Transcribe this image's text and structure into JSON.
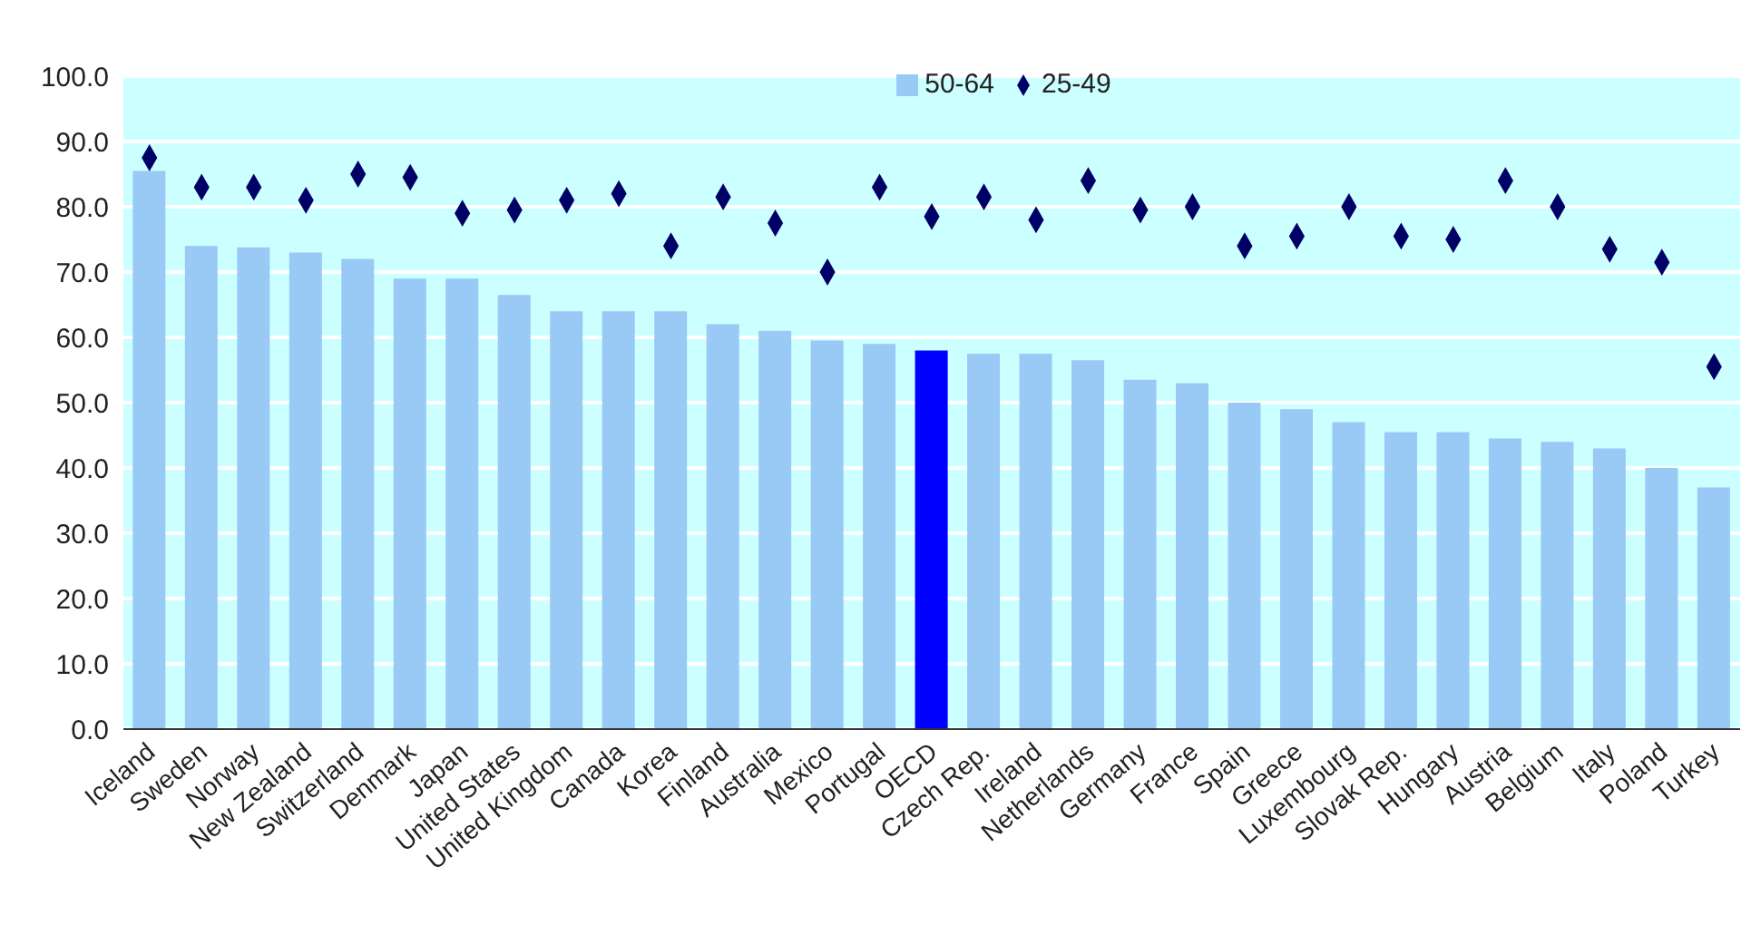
{
  "chart_data": {
    "type": "bar",
    "categories": [
      "Iceland",
      "Sweden",
      "Norway",
      "New Zealand",
      "Switzerland",
      "Denmark",
      "Japan",
      "United States",
      "United Kingdom",
      "Canada",
      "Korea",
      "Finland",
      "Australia",
      "Mexico",
      "Portugal",
      "OECD",
      "Czech Rep.",
      "Ireland",
      "Netherlands",
      "Germany",
      "France",
      "Spain",
      "Greece",
      "Luxembourg",
      "Slovak Rep.",
      "Hungary",
      "Austria",
      "Belgium",
      "Italy",
      "Poland",
      "Turkey"
    ],
    "series": [
      {
        "name": "50-64",
        "color": "#99c9f5",
        "colors": [
          "#99c9f5",
          "#99c9f5",
          "#99c9f5",
          "#99c9f5",
          "#99c9f5",
          "#99c9f5",
          "#99c9f5",
          "#99c9f5",
          "#99c9f5",
          "#99c9f5",
          "#99c9f5",
          "#99c9f5",
          "#99c9f5",
          "#99c9f5",
          "#99c9f5",
          "#0000ff",
          "#99c9f5",
          "#99c9f5",
          "#99c9f5",
          "#99c9f5",
          "#99c9f5",
          "#99c9f5",
          "#99c9f5",
          "#99c9f5",
          "#99c9f5",
          "#99c9f5",
          "#99c9f5",
          "#99c9f5",
          "#99c9f5",
          "#99c9f5",
          "#99c9f5"
        ],
        "values": [
          85.5,
          74,
          73.8,
          73,
          72,
          69,
          69,
          66.5,
          64,
          64,
          64,
          62,
          61,
          59.5,
          59,
          58,
          57.5,
          57.5,
          56.5,
          53.5,
          53,
          50,
          49,
          47,
          45.5,
          45.5,
          44.5,
          44,
          43,
          40,
          37
        ]
      },
      {
        "name": "25-49",
        "type": "scatter",
        "color": "#000066",
        "values": [
          87.5,
          83,
          83,
          81,
          85,
          84.5,
          79,
          79.5,
          81,
          82,
          74,
          81.5,
          77.5,
          70,
          83,
          78.5,
          81.5,
          78,
          84,
          79.5,
          80,
          74,
          75.5,
          80,
          75.5,
          75,
          84,
          80,
          73.5,
          71.5,
          55.5
        ]
      }
    ],
    "ylim": [
      0,
      100
    ],
    "yticks": [
      {
        "value": 0,
        "label": "0.0"
      },
      {
        "value": 10,
        "label": "10.0"
      },
      {
        "value": 20,
        "label": "20.0"
      },
      {
        "value": 30,
        "label": "30.0"
      },
      {
        "value": 40,
        "label": "40.0"
      },
      {
        "value": 50,
        "label": "50.0"
      },
      {
        "value": 60,
        "label": "60.0"
      },
      {
        "value": 70,
        "label": "70.0"
      },
      {
        "value": 80,
        "label": "80.0"
      },
      {
        "value": 90,
        "label": "90.0"
      },
      {
        "value": 100,
        "label": "100.0"
      }
    ],
    "grid": "y",
    "legend": "top",
    "marker": "diamond"
  }
}
